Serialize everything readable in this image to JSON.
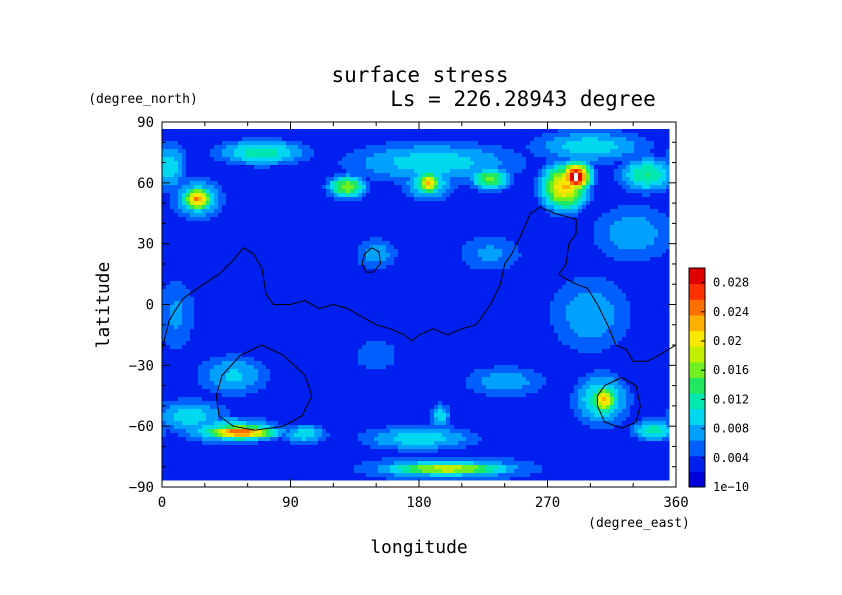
{
  "chart_data": {
    "type": "heatmap",
    "title": "surface stress",
    "subtitle": "Ls = 226.28943 degree",
    "xlabel": "longitude",
    "ylabel": "latitude",
    "x_unit": "(degree_east)",
    "y_unit": "(degree_north)",
    "xlim": [
      0,
      360
    ],
    "ylim": [
      -90,
      90
    ],
    "x_ticks": [
      "0",
      "90",
      "180",
      "270",
      "360"
    ],
    "x_tick_values": [
      0,
      90,
      180,
      270,
      360
    ],
    "y_ticks": [
      "90",
      "60",
      "30",
      "0",
      "−30",
      "−60",
      "−90"
    ],
    "y_tick_values": [
      90,
      60,
      30,
      0,
      -30,
      -60,
      -90
    ],
    "colorbar": {
      "labels": [
        "0.028",
        "0.024",
        "0.02",
        "0.016",
        "0.012",
        "0.008",
        "0.004",
        "1e−10"
      ],
      "values": [
        0.028,
        0.024,
        0.02,
        0.016,
        0.012,
        0.008,
        0.004,
        0.0
      ],
      "min": 0.0,
      "max": 0.03,
      "colors": [
        "#0000d8",
        "#0020f0",
        "#0060ff",
        "#00a0ff",
        "#00d8f0",
        "#00e8b0",
        "#20e860",
        "#70f020",
        "#c0f000",
        "#f8e800",
        "#ffb000",
        "#ff7000",
        "#ff3000",
        "#e00000"
      ]
    },
    "background_value": 0.003,
    "hotspots": [
      {
        "lon": 290,
        "lat": 63,
        "value": 0.031,
        "rlon": 9,
        "rlat": 6
      },
      {
        "lon": 282,
        "lat": 58,
        "value": 0.022,
        "rlon": 14,
        "rlat": 10
      },
      {
        "lon": 55,
        "lat": -63,
        "value": 0.026,
        "rlon": 22,
        "rlat": 3
      },
      {
        "lon": 48,
        "lat": -62,
        "value": 0.012,
        "rlon": 32,
        "rlat": 6
      },
      {
        "lon": 310,
        "lat": -47,
        "value": 0.022,
        "rlon": 8,
        "rlat": 6
      },
      {
        "lon": 308,
        "lat": -47,
        "value": 0.012,
        "rlon": 18,
        "rlat": 12
      },
      {
        "lon": 25,
        "lat": 52,
        "value": 0.024,
        "rlon": 9,
        "rlat": 5
      },
      {
        "lon": 25,
        "lat": 52,
        "value": 0.012,
        "rlon": 16,
        "rlat": 9
      },
      {
        "lon": 187,
        "lat": 60,
        "value": 0.022,
        "rlon": 7,
        "rlat": 5
      },
      {
        "lon": 187,
        "lat": 60,
        "value": 0.012,
        "rlon": 16,
        "rlat": 8
      },
      {
        "lon": 130,
        "lat": 58,
        "value": 0.017,
        "rlon": 12,
        "rlat": 5
      },
      {
        "lon": 230,
        "lat": 62,
        "value": 0.016,
        "rlon": 12,
        "rlat": 5
      },
      {
        "lon": 200,
        "lat": -81,
        "value": 0.019,
        "rlon": 40,
        "rlat": 3
      },
      {
        "lon": 200,
        "lat": -81,
        "value": 0.01,
        "rlon": 60,
        "rlat": 6
      },
      {
        "lon": 70,
        "lat": 75,
        "value": 0.012,
        "rlon": 30,
        "rlat": 6
      },
      {
        "lon": 190,
        "lat": 70,
        "value": 0.01,
        "rlon": 60,
        "rlat": 10
      },
      {
        "lon": 300,
        "lat": 78,
        "value": 0.01,
        "rlon": 40,
        "rlat": 8
      },
      {
        "lon": 340,
        "lat": 64,
        "value": 0.013,
        "rlon": 18,
        "rlat": 8
      },
      {
        "lon": 5,
        "lat": 68,
        "value": 0.01,
        "rlon": 12,
        "rlat": 12
      },
      {
        "lon": 330,
        "lat": 35,
        "value": 0.008,
        "rlon": 30,
        "rlat": 15
      },
      {
        "lon": 300,
        "lat": -5,
        "value": 0.008,
        "rlon": 30,
        "rlat": 20
      },
      {
        "lon": 10,
        "lat": -5,
        "value": 0.007,
        "rlon": 15,
        "rlat": 20
      },
      {
        "lon": 50,
        "lat": -35,
        "value": 0.009,
        "rlon": 25,
        "rlat": 10
      },
      {
        "lon": 150,
        "lat": -25,
        "value": 0.006,
        "rlon": 20,
        "rlat": 10
      },
      {
        "lon": 195,
        "lat": -55,
        "value": 0.01,
        "rlon": 7,
        "rlat": 6
      },
      {
        "lon": 240,
        "lat": -38,
        "value": 0.008,
        "rlon": 30,
        "rlat": 8
      },
      {
        "lon": 180,
        "lat": -66,
        "value": 0.01,
        "rlon": 40,
        "rlat": 6
      },
      {
        "lon": 100,
        "lat": -64,
        "value": 0.01,
        "rlon": 15,
        "rlat": 5
      },
      {
        "lon": 20,
        "lat": -55,
        "value": 0.01,
        "rlon": 25,
        "rlat": 8
      },
      {
        "lon": 150,
        "lat": 25,
        "value": 0.008,
        "rlon": 15,
        "rlat": 8
      },
      {
        "lon": 230,
        "lat": 25,
        "value": 0.007,
        "rlon": 25,
        "rlat": 10
      },
      {
        "lon": 345,
        "lat": -62,
        "value": 0.012,
        "rlon": 15,
        "rlat": 5
      }
    ],
    "contours": [
      [
        [
          0,
          -22
        ],
        [
          5,
          -8
        ],
        [
          10,
          -2
        ],
        [
          15,
          3
        ],
        [
          25,
          8
        ],
        [
          40,
          15
        ],
        [
          50,
          22
        ],
        [
          57,
          28
        ],
        [
          64,
          25
        ],
        [
          70,
          18
        ],
        [
          73,
          5
        ],
        [
          78,
          0
        ],
        [
          90,
          0
        ],
        [
          100,
          2
        ],
        [
          110,
          -2
        ],
        [
          120,
          0
        ],
        [
          130,
          -2
        ],
        [
          140,
          -6
        ],
        [
          150,
          -10
        ],
        [
          160,
          -12
        ],
        [
          170,
          -15
        ],
        [
          175,
          -18
        ],
        [
          180,
          -15
        ],
        [
          190,
          -12
        ],
        [
          200,
          -15
        ],
        [
          210,
          -12
        ],
        [
          220,
          -10
        ],
        [
          225,
          -5
        ],
        [
          230,
          0
        ],
        [
          237,
          10
        ],
        [
          240,
          20
        ],
        [
          245,
          25
        ],
        [
          252,
          35
        ],
        [
          258,
          45
        ],
        [
          265,
          48
        ],
        [
          275,
          45
        ],
        [
          285,
          43
        ],
        [
          290,
          42
        ],
        [
          290,
          35
        ],
        [
          285,
          30
        ],
        [
          283,
          20
        ],
        [
          278,
          15
        ],
        [
          282,
          13
        ],
        [
          290,
          10
        ],
        [
          298,
          8
        ],
        [
          305,
          0
        ],
        [
          312,
          -10
        ],
        [
          318,
          -20
        ],
        [
          325,
          -22
        ],
        [
          330,
          -28
        ],
        [
          340,
          -28
        ],
        [
          348,
          -25
        ],
        [
          360,
          -20
        ]
      ],
      [
        [
          140,
          20
        ],
        [
          142,
          25
        ],
        [
          147,
          28
        ],
        [
          152,
          26
        ],
        [
          153,
          20
        ],
        [
          148,
          16
        ],
        [
          143,
          16
        ],
        [
          140,
          20
        ]
      ],
      [
        [
          40,
          -55
        ],
        [
          38,
          -45
        ],
        [
          42,
          -35
        ],
        [
          55,
          -25
        ],
        [
          70,
          -20
        ],
        [
          85,
          -25
        ],
        [
          100,
          -35
        ],
        [
          105,
          -45
        ],
        [
          98,
          -55
        ],
        [
          85,
          -60
        ],
        [
          65,
          -62
        ],
        [
          50,
          -60
        ],
        [
          40,
          -55
        ]
      ],
      [
        [
          305,
          -45
        ],
        [
          310,
          -40
        ],
        [
          322,
          -36
        ],
        [
          332,
          -40
        ],
        [
          335,
          -50
        ],
        [
          332,
          -58
        ],
        [
          322,
          -61
        ],
        [
          310,
          -58
        ],
        [
          305,
          -50
        ],
        [
          305,
          -45
        ]
      ]
    ]
  }
}
